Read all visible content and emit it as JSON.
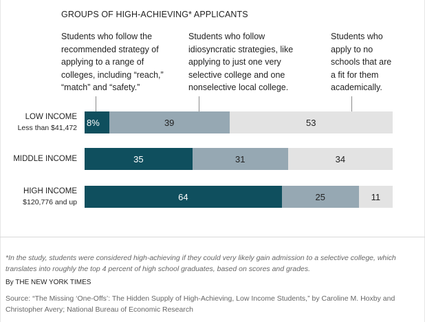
{
  "chart_data": {
    "type": "bar",
    "stacked": true,
    "orientation": "horizontal",
    "title": "GROUPS OF HIGH-ACHIEVING* APPLICANTS",
    "categories": [
      {
        "label": "LOW INCOME",
        "sublabel": "Less than $41,472"
      },
      {
        "label": "MIDDLE INCOME",
        "sublabel": ""
      },
      {
        "label": "HIGH INCOME",
        "sublabel": "$120,776 and up"
      }
    ],
    "series": [
      {
        "name": "Students who follow the recommended strategy of applying to a range of colleges, including “reach,” “match” and “safety.”",
        "color": "#0f4f5e",
        "values": [
          8,
          35,
          64
        ]
      },
      {
        "name": "Students who follow idiosyncratic strategies, like applying to just one very selective college and one nonselective local college.",
        "color": "#96a8b3",
        "values": [
          39,
          31,
          25
        ]
      },
      {
        "name": "Students who apply to no schools that are a fit for them academically.",
        "color": "#e3e3e3",
        "values": [
          53,
          34,
          11
        ]
      }
    ],
    "value_labels": [
      [
        "8%",
        "39",
        "53"
      ],
      [
        "35",
        "31",
        "34"
      ],
      [
        "64",
        "25",
        "11"
      ]
    ],
    "xlim": [
      0,
      100
    ]
  },
  "legend_lines": [
    [
      "Students who follow the",
      "recommended strategy of",
      "applying to a range of",
      "colleges, including “reach,”",
      "“match” and “safety.”"
    ],
    [
      "Students who follow",
      "idiosyncratic strategies, like",
      "applying to just one very",
      "selective college and one",
      "nonselective local college."
    ],
    [
      "Students who",
      "apply to no",
      "schools that are",
      "a fit for them",
      "academically."
    ]
  ],
  "footnote": "*In the study, students were considered high-achieving if they could very likely gain admission to a selective college, which translates into roughly the top 4 percent of high school graduates, based on scores and grades.",
  "credit": "By THE NEW YORK TIMES",
  "source": "Source: “The Missing ‘One-Offs’: The Hidden Supply of High-Achieving, Low Income Students,” by Caroline M. Hoxby and Christopher Avery; National Bureau of Economic Research"
}
